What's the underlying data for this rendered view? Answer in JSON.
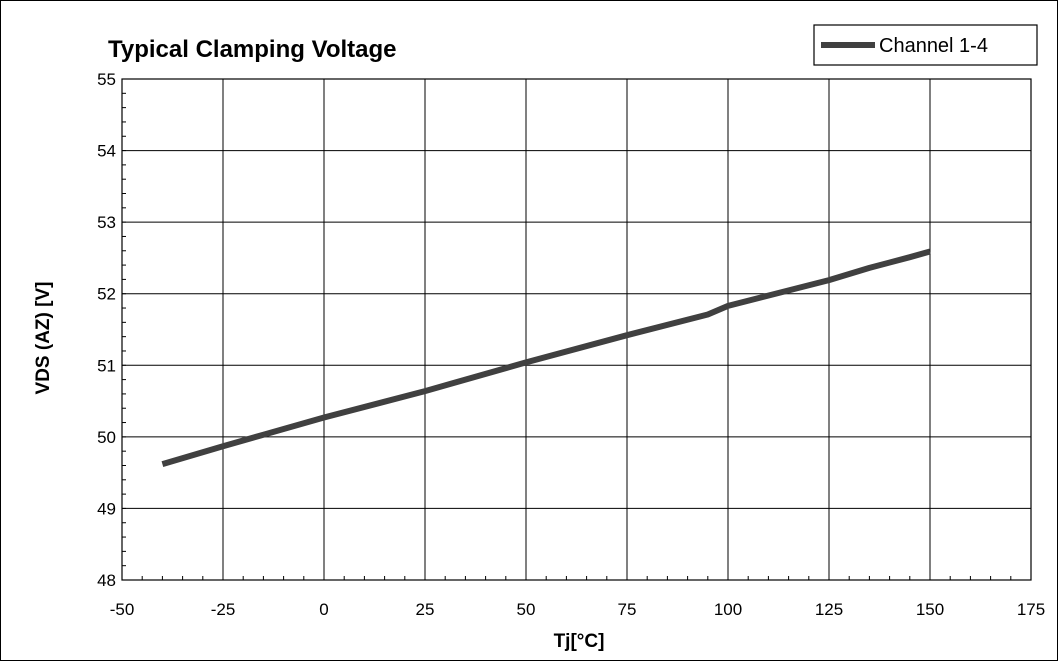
{
  "chart_data": {
    "type": "line",
    "title": "Typical Clamping Voltage",
    "xlabel": "Tj[°C]",
    "ylabel": "VDS (AZ) [V]",
    "xlim": [
      -50,
      175
    ],
    "ylim": [
      48,
      55
    ],
    "xticks": [
      -50,
      -25,
      0,
      25,
      50,
      75,
      100,
      125,
      150,
      175
    ],
    "yticks": [
      48,
      49,
      50,
      51,
      52,
      53,
      54,
      55
    ],
    "grid": true,
    "legend_position": "top-right",
    "series": [
      {
        "name": "Channel 1-4",
        "color": "#404040",
        "x": [
          -40,
          -25,
          -15,
          0,
          25,
          50,
          75,
          95,
          100,
          125,
          135,
          145,
          150
        ],
        "y": [
          49.62,
          49.87,
          50.03,
          50.27,
          50.64,
          51.04,
          51.42,
          51.71,
          51.83,
          52.19,
          52.36,
          52.51,
          52.59
        ]
      }
    ]
  }
}
